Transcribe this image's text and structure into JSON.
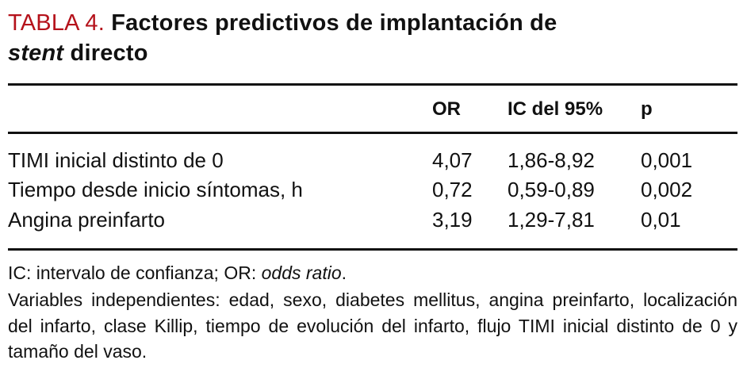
{
  "title": {
    "label": "TABLA 4.",
    "text_before_italic": "Factores predictivos de implantación de ",
    "italic_word": "stent",
    "text_after_italic": " directo",
    "accent_color": "#b5121b"
  },
  "table": {
    "headers": {
      "label": "",
      "or": "OR",
      "ic": "IC del 95%",
      "p": "p"
    },
    "rows": [
      {
        "label": "TIMI inicial distinto de 0",
        "or": "4,07",
        "ic": "1,86-8,92",
        "p": "0,001"
      },
      {
        "label": "Tiempo desde inicio síntomas, h",
        "or": "0,72",
        "ic": "0,59-0,89",
        "p": "0,002"
      },
      {
        "label": "Angina preinfarto",
        "or": "3,19",
        "ic": "1,29-7,81",
        "p": "0,01"
      }
    ]
  },
  "footnotes": {
    "line1_prefix": "IC: intervalo de confianza; OR: ",
    "line1_italic": "odds ratio",
    "line1_suffix": ".",
    "line2": "Variables independientes: edad, sexo, diabetes mellitus, angina preinfarto, localización del infarto, clase Killip, tiempo de evolución del infarto, flujo TIMI inicial distinto de 0 y tamaño del vaso."
  }
}
